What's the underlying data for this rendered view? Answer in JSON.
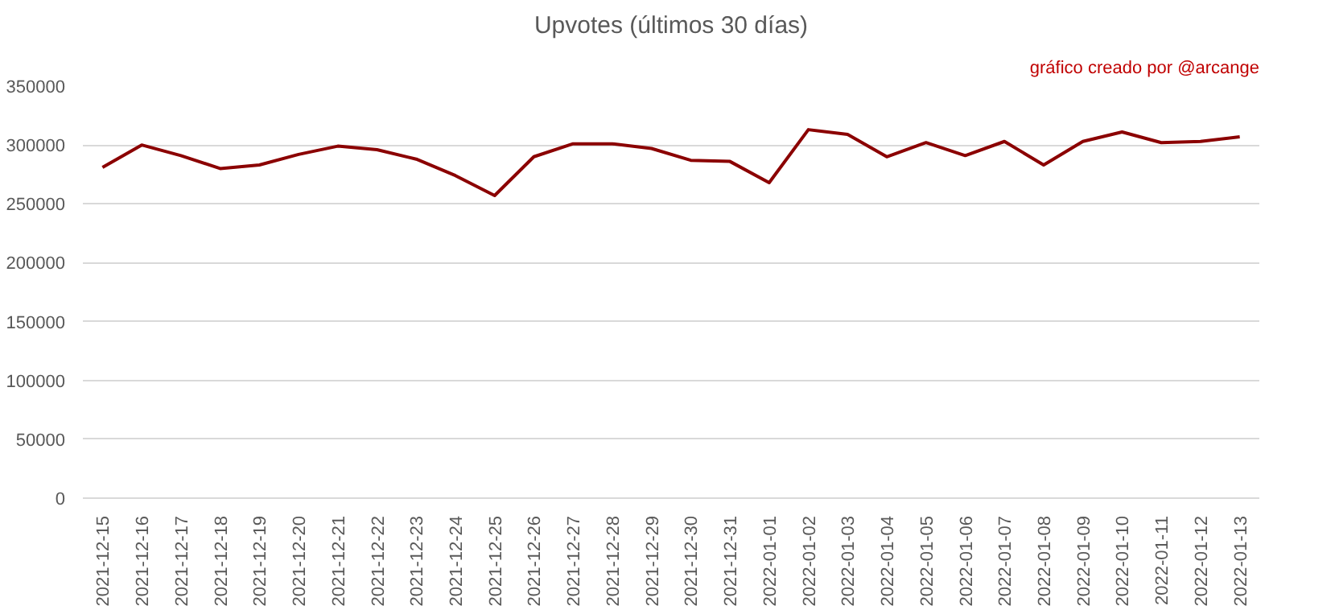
{
  "chart_data": {
    "type": "line",
    "title": "Upvotes (últimos 30 días)",
    "annotations": [
      "gráfico creado por @arcange"
    ],
    "categories": [
      "2021-12-15",
      "2021-12-16",
      "2021-12-17",
      "2021-12-18",
      "2021-12-19",
      "2021-12-20",
      "2021-12-21",
      "2021-12-22",
      "2021-12-23",
      "2021-12-24",
      "2021-12-25",
      "2021-12-26",
      "2021-12-27",
      "2021-12-28",
      "2021-12-29",
      "2021-12-30",
      "2021-12-31",
      "2022-01-01",
      "2022-01-02",
      "2022-01-03",
      "2022-01-04",
      "2022-01-05",
      "2022-01-06",
      "2022-01-07",
      "2022-01-08",
      "2022-01-09",
      "2022-01-10",
      "2022-01-11",
      "2022-01-12",
      "2022-01-13"
    ],
    "series": [
      {
        "color": "#8b0000",
        "values": [
          281000,
          300000,
          291000,
          280000,
          283000,
          292000,
          299000,
          296000,
          288000,
          274000,
          257000,
          290000,
          301000,
          301000,
          297000,
          287000,
          286000,
          268000,
          313000,
          309000,
          290000,
          302000,
          291000,
          303000,
          283000,
          303000,
          311000,
          302000,
          303000,
          307000
        ]
      }
    ],
    "ylim": [
      0,
      350000
    ],
    "yticks": [
      0,
      50000,
      100000,
      150000,
      200000,
      250000,
      300000,
      350000
    ],
    "grid": "y",
    "marker": "none",
    "line_style": "solid"
  }
}
